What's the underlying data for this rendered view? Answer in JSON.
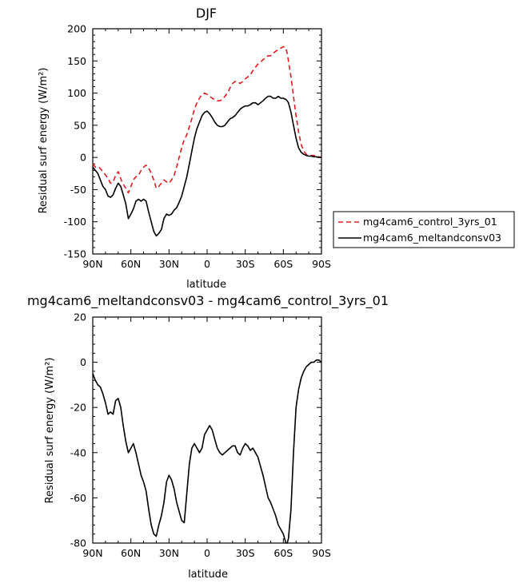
{
  "chart_data": [
    {
      "type": "line",
      "title": "DJF",
      "xlabel": "latitude",
      "ylabel": "Residual surf energy (W/m²)",
      "xlim": [
        90,
        -90
      ],
      "ylim": [
        -150,
        200
      ],
      "x_ticks": [
        {
          "value": 90,
          "label": "90N"
        },
        {
          "value": 60,
          "label": "60N"
        },
        {
          "value": 30,
          "label": "30N"
        },
        {
          "value": 0,
          "label": "0"
        },
        {
          "value": -30,
          "label": "30S"
        },
        {
          "value": -60,
          "label": "60S"
        },
        {
          "value": -90,
          "label": "90S"
        }
      ],
      "y_ticks": [
        -150,
        -100,
        -50,
        0,
        50,
        100,
        150,
        200
      ],
      "legend_position": "right",
      "series": [
        {
          "name": "mg4cam6_control_3yrs_01",
          "color": "#e41a1c",
          "dash": true,
          "x": [
            90,
            88,
            85,
            82,
            80,
            78,
            76,
            74,
            72,
            70,
            67,
            64,
            62,
            60,
            58,
            56,
            54,
            52,
            50,
            48,
            45,
            42,
            40,
            38,
            36,
            34,
            32,
            30,
            28,
            26,
            24,
            22,
            20,
            18,
            16,
            14,
            12,
            10,
            8,
            6,
            4,
            2,
            0,
            -2,
            -4,
            -6,
            -8,
            -10,
            -12,
            -14,
            -16,
            -18,
            -20,
            -22,
            -24,
            -26,
            -28,
            -30,
            -32,
            -34,
            -36,
            -38,
            -40,
            -42,
            -44,
            -46,
            -48,
            -50,
            -52,
            -54,
            -56,
            -58,
            -60,
            -61,
            -62,
            -63,
            -64,
            -66,
            -68,
            -70,
            -72,
            -74,
            -76,
            -78,
            -80,
            -82,
            -84,
            -86,
            -88,
            -90
          ],
          "y": [
            -10,
            -15,
            -15,
            -22,
            -27,
            -33,
            -40,
            -38,
            -28,
            -22,
            -38,
            -48,
            -55,
            -45,
            -35,
            -30,
            -28,
            -20,
            -15,
            -12,
            -20,
            -35,
            -48,
            -45,
            -40,
            -35,
            -38,
            -40,
            -35,
            -28,
            -15,
            0,
            15,
            28,
            35,
            48,
            60,
            75,
            85,
            92,
            98,
            100,
            98,
            95,
            92,
            90,
            88,
            88,
            90,
            95,
            100,
            108,
            115,
            118,
            118,
            115,
            118,
            122,
            125,
            128,
            135,
            140,
            145,
            148,
            152,
            155,
            158,
            158,
            162,
            165,
            168,
            170,
            172,
            172,
            170,
            162,
            150,
            125,
            95,
            65,
            40,
            20,
            10,
            5,
            3,
            3,
            3,
            2,
            1,
            0
          ]
        },
        {
          "name": "mg4cam6_meltandconsv03",
          "color": "#000000",
          "dash": false,
          "x": [
            90,
            88,
            86,
            84,
            82,
            80,
            78,
            76,
            74,
            72,
            70,
            68,
            66,
            64,
            62,
            60,
            58,
            56,
            54,
            52,
            50,
            48,
            46,
            44,
            42,
            40,
            38,
            36,
            34,
            32,
            30,
            28,
            26,
            24,
            22,
            20,
            18,
            16,
            14,
            12,
            10,
            8,
            6,
            4,
            2,
            0,
            -2,
            -4,
            -6,
            -8,
            -10,
            -12,
            -14,
            -16,
            -18,
            -20,
            -22,
            -24,
            -26,
            -28,
            -30,
            -32,
            -34,
            -36,
            -38,
            -40,
            -42,
            -44,
            -46,
            -48,
            -50,
            -52,
            -54,
            -56,
            -58,
            -60,
            -62,
            -63,
            -64,
            -66,
            -68,
            -70,
            -72,
            -74,
            -76,
            -78,
            -80,
            -82,
            -84,
            -86,
            -88,
            -90
          ],
          "y": [
            -15,
            -20,
            -25,
            -35,
            -45,
            -50,
            -60,
            -62,
            -58,
            -48,
            -40,
            -45,
            -58,
            -72,
            -95,
            -88,
            -80,
            -68,
            -65,
            -68,
            -65,
            -68,
            -85,
            -100,
            -115,
            -122,
            -118,
            -112,
            -95,
            -88,
            -90,
            -88,
            -82,
            -78,
            -70,
            -60,
            -45,
            -30,
            -10,
            10,
            30,
            45,
            55,
            65,
            70,
            72,
            68,
            62,
            55,
            50,
            48,
            48,
            50,
            55,
            60,
            62,
            65,
            70,
            75,
            78,
            80,
            80,
            82,
            85,
            85,
            82,
            85,
            88,
            92,
            95,
            95,
            92,
            92,
            95,
            92,
            92,
            90,
            88,
            85,
            70,
            50,
            30,
            15,
            8,
            5,
            3,
            2,
            2,
            1,
            1,
            0,
            0
          ]
        }
      ]
    },
    {
      "type": "line",
      "title": "mg4cam6_meltandconsv03 - mg4cam6_control_3yrs_01",
      "xlabel": "latitude",
      "ylabel": "Residual surf energy (W/m²)",
      "xlim": [
        90,
        -90
      ],
      "ylim": [
        -80,
        20
      ],
      "x_ticks": [
        {
          "value": 90,
          "label": "90N"
        },
        {
          "value": 60,
          "label": "60N"
        },
        {
          "value": 30,
          "label": "30N"
        },
        {
          "value": 0,
          "label": "0"
        },
        {
          "value": -30,
          "label": "30S"
        },
        {
          "value": -60,
          "label": "60S"
        },
        {
          "value": -90,
          "label": "90S"
        }
      ],
      "y_ticks": [
        -80,
        -60,
        -40,
        -20,
        0,
        20
      ],
      "series": [
        {
          "color": "#000000",
          "dash": false,
          "x": [
            90,
            88,
            86,
            84,
            82,
            80,
            78,
            76,
            74,
            72,
            70,
            68,
            66,
            64,
            62,
            60,
            58,
            56,
            54,
            52,
            50,
            48,
            46,
            44,
            42,
            40,
            38,
            36,
            34,
            32,
            30,
            28,
            26,
            24,
            22,
            20,
            18,
            16,
            14,
            12,
            10,
            8,
            6,
            4,
            2,
            0,
            -2,
            -4,
            -6,
            -8,
            -10,
            -12,
            -14,
            -16,
            -18,
            -20,
            -22,
            -24,
            -26,
            -28,
            -30,
            -32,
            -34,
            -36,
            -38,
            -40,
            -42,
            -44,
            -46,
            -48,
            -50,
            -52,
            -54,
            -56,
            -58,
            -60,
            -61,
            -62,
            -63,
            -64,
            -66,
            -68,
            -70,
            -72,
            -74,
            -76,
            -78,
            -80,
            -82,
            -84,
            -86,
            -88,
            -90
          ],
          "y": [
            -5,
            -8,
            -10,
            -11,
            -14,
            -18,
            -23,
            -22,
            -23,
            -17,
            -16,
            -20,
            -28,
            -35,
            -40,
            -38,
            -36,
            -40,
            -45,
            -50,
            -53,
            -57,
            -65,
            -72,
            -76,
            -77,
            -72,
            -68,
            -62,
            -53,
            -50,
            -52,
            -56,
            -62,
            -66,
            -70,
            -71,
            -58,
            -45,
            -38,
            -36,
            -38,
            -40,
            -38,
            -32,
            -30,
            -28,
            -30,
            -34,
            -38,
            -40,
            -41,
            -40,
            -39,
            -38,
            -37,
            -37,
            -40,
            -41,
            -38,
            -36,
            -37,
            -39,
            -38,
            -40,
            -42,
            -46,
            -50,
            -55,
            -60,
            -62,
            -65,
            -68,
            -72,
            -74,
            -76,
            -78,
            -80,
            -80,
            -78,
            -65,
            -40,
            -20,
            -12,
            -7,
            -4,
            -2,
            -1,
            0,
            0,
            1,
            1,
            0
          ]
        }
      ]
    }
  ]
}
